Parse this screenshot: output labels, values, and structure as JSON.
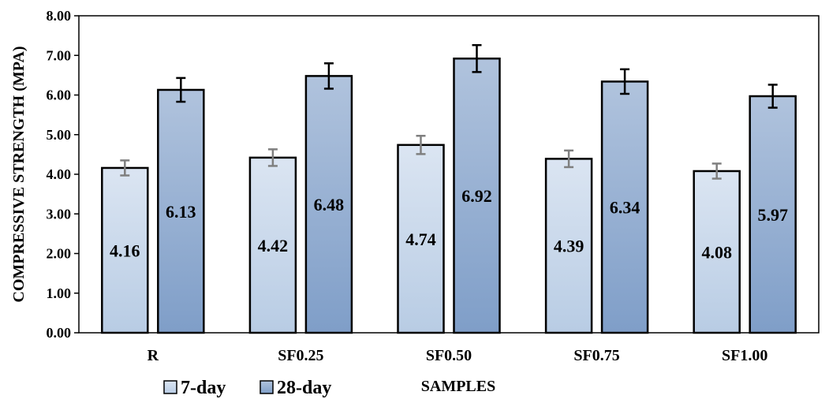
{
  "chart_data": {
    "type": "bar",
    "title": "",
    "xlabel": "SAMPLES",
    "ylabel": "COMPRESSIVE STRENGTH (MPA)",
    "ylim": [
      0,
      8
    ],
    "yticks": [
      "0.00",
      "1.00",
      "2.00",
      "3.00",
      "4.00",
      "5.00",
      "6.00",
      "7.00",
      "8.00"
    ],
    "categories": [
      "R",
      "SF0.25",
      "SF0.50",
      "SF0.75",
      "SF1.00"
    ],
    "series": [
      {
        "name": "7-day",
        "values": [
          4.16,
          4.42,
          4.74,
          4.39,
          4.08
        ],
        "labels": [
          "4.16",
          "4.42",
          "4.74",
          "4.39",
          "4.08"
        ],
        "error": [
          0.19,
          0.21,
          0.23,
          0.21,
          0.19
        ],
        "color_top": "#dbe5f2",
        "color_bottom": "#b8cce4",
        "error_color": "#7f7f7f"
      },
      {
        "name": "28-day",
        "values": [
          6.13,
          6.48,
          6.92,
          6.34,
          5.97
        ],
        "labels": [
          "6.13",
          "6.48",
          "6.92",
          "6.34",
          "5.97"
        ],
        "error": [
          0.3,
          0.32,
          0.34,
          0.31,
          0.29
        ],
        "color_top": "#b0c3dd",
        "color_bottom": "#7f9ec8",
        "error_color": "#000000"
      }
    ],
    "legend_position": "bottom-left",
    "grid": false
  }
}
